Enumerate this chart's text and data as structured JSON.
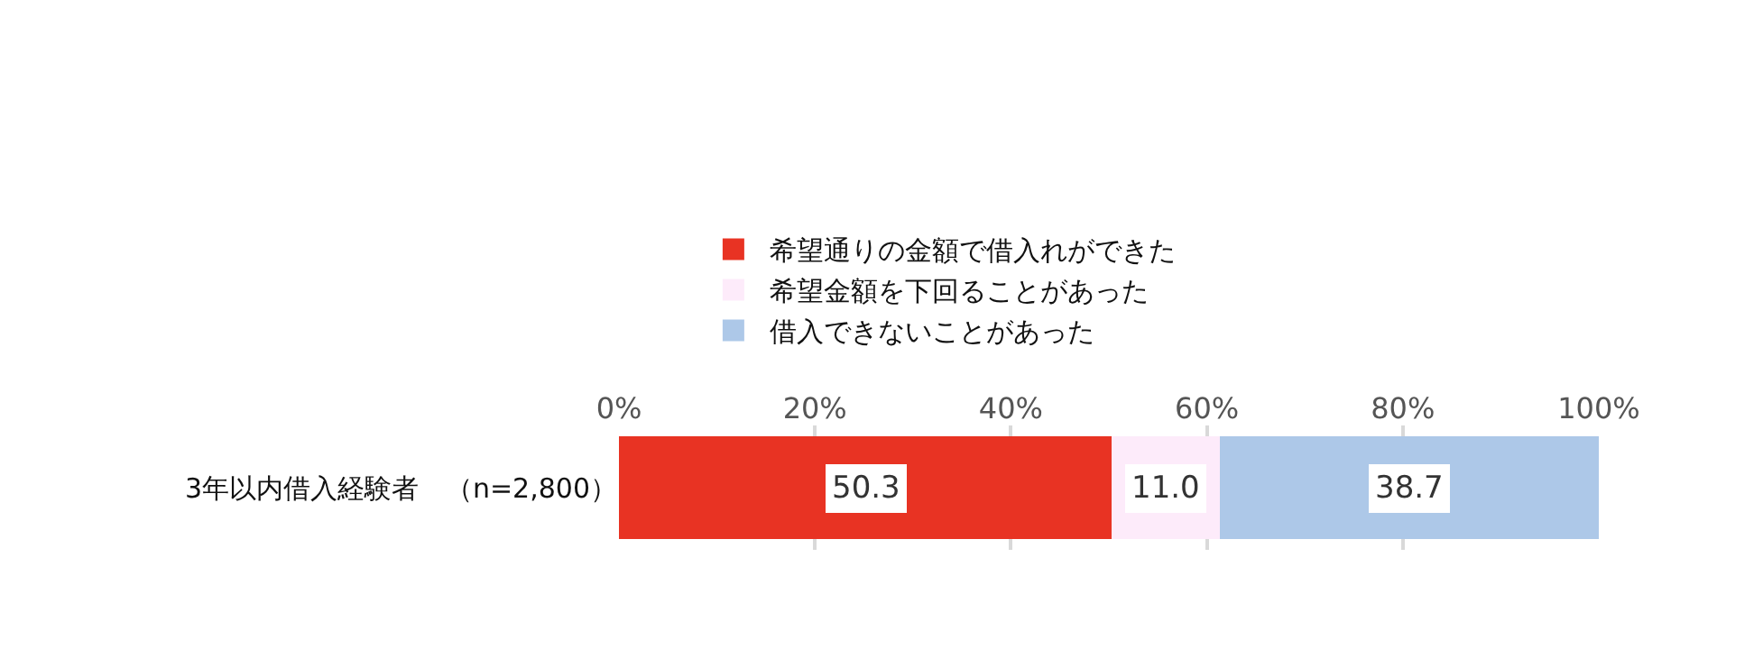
{
  "chart_data": {
    "type": "bar",
    "orientation": "horizontal",
    "stacked": true,
    "categories": [
      "3年以内借入経験者　（n=2,800）"
    ],
    "series": [
      {
        "name": "希望通りの金額で借入れができた",
        "color": "#e83323",
        "values": [
          50.3
        ],
        "value_labels": [
          "50.3"
        ]
      },
      {
        "name": "希望金額を下回ることがあった",
        "color": "#fdebfa",
        "values": [
          11.0
        ],
        "value_labels": [
          "11.0"
        ]
      },
      {
        "name": "借入できないことがあった",
        "color": "#adc8e8",
        "values": [
          38.7
        ],
        "value_labels": [
          "38.7"
        ]
      }
    ],
    "xlim": [
      0,
      100
    ],
    "xticks": [
      {
        "value": 0,
        "label": "0%"
      },
      {
        "value": 20,
        "label": "20%"
      },
      {
        "value": 40,
        "label": "40%"
      },
      {
        "value": 60,
        "label": "60%"
      },
      {
        "value": 80,
        "label": "80%"
      },
      {
        "value": 100,
        "label": "100%"
      }
    ],
    "grid": "x",
    "legend": "top left"
  }
}
